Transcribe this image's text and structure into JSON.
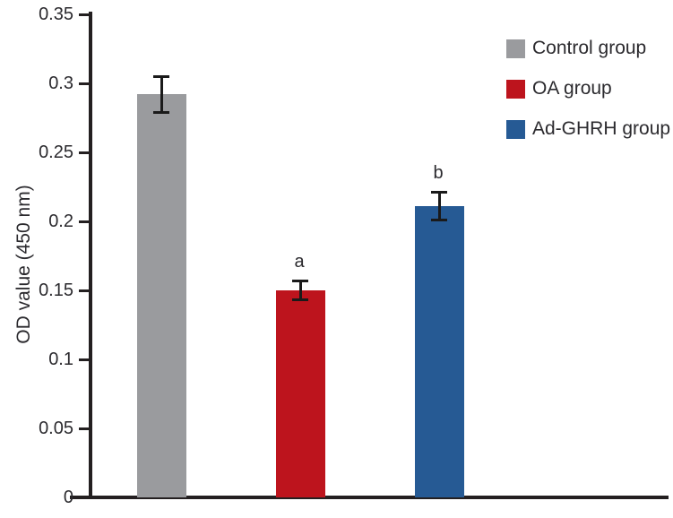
{
  "chart_data": {
    "type": "bar",
    "title": "",
    "xlabel": "",
    "ylabel": "OD value (450 nm)",
    "ylim": [
      0,
      0.35
    ],
    "yticks": [
      0,
      0.05,
      0.1,
      0.15,
      0.2,
      0.25,
      0.3,
      0.35
    ],
    "ytick_labels": [
      "0",
      "0.05",
      "0.1",
      "0.15",
      "0.2",
      "0.25",
      "0.3",
      "0.35"
    ],
    "categories": [
      "Control group",
      "OA group",
      "Ad-GHRH group"
    ],
    "values": [
      0.292,
      0.15,
      0.211
    ],
    "errors": [
      0.014,
      0.008,
      0.011
    ],
    "significance_labels": [
      "",
      "a",
      "b"
    ],
    "bar_colors": [
      "#9a9b9e",
      "#bd141d",
      "#265a94"
    ],
    "grid": false,
    "legend": {
      "position": "top-right",
      "entries": [
        {
          "label": "Control group",
          "color": "#9a9b9e"
        },
        {
          "label": "OA group",
          "color": "#bd141d"
        },
        {
          "label": "Ad-GHRH group",
          "color": "#265a94"
        }
      ]
    },
    "colors": {
      "axis": "#231f20",
      "text": "#2b2a2e",
      "error_bar": "#1a1a1a"
    }
  }
}
